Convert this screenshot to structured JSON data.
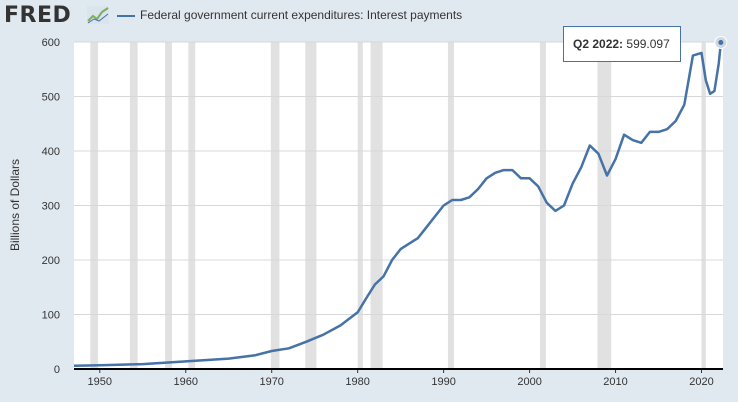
{
  "header": {
    "logo_text": "FRED",
    "legend_label": "Federal government current expenditures: Interest payments"
  },
  "tooltip": {
    "label": "Q2 2022:",
    "value": "599.097"
  },
  "colors": {
    "series": "#4572a7",
    "background": "#e1e9f0",
    "plot_background": "#ffffff",
    "recession": "#e1e1e1"
  },
  "chart_data": {
    "type": "line",
    "title": "",
    "xlabel": "",
    "ylabel": "Billions of Dollars",
    "xlim": [
      1947,
      2022.5
    ],
    "ylim": [
      0,
      600
    ],
    "x_ticks": [
      1950,
      1960,
      1970,
      1980,
      1990,
      2000,
      2010,
      2020
    ],
    "y_ticks": [
      0,
      100,
      200,
      300,
      400,
      500,
      600
    ],
    "grid": true,
    "legend": "top-left",
    "recessions": [
      [
        1948.9,
        1949.8
      ],
      [
        1953.5,
        1954.4
      ],
      [
        1957.6,
        1958.4
      ],
      [
        1960.3,
        1961.1
      ],
      [
        1969.9,
        1970.9
      ],
      [
        1973.9,
        1975.2
      ],
      [
        1980.0,
        1980.6
      ],
      [
        1981.5,
        1982.9
      ],
      [
        1990.5,
        1991.2
      ],
      [
        2001.2,
        2001.9
      ],
      [
        2007.9,
        2009.5
      ],
      [
        2020.0,
        2020.5
      ]
    ],
    "series": [
      {
        "x": [
          1947,
          1950,
          1955,
          1960,
          1965,
          1968,
          1970,
          1972,
          1974,
          1976,
          1978,
          1980,
          1981,
          1982,
          1983,
          1984,
          1985,
          1986,
          1987,
          1988,
          1989,
          1990,
          1991,
          1992,
          1993,
          1994,
          1995,
          1996,
          1997,
          1998,
          1999,
          2000,
          2001,
          2002,
          2003,
          2004,
          2005,
          2006,
          2007,
          2008,
          2009,
          2010,
          2011,
          2012,
          2013,
          2014,
          2015,
          2016,
          2017,
          2018,
          2019,
          2020,
          2020.5,
          2021,
          2021.5,
          2022,
          2022.25
        ],
        "values": [
          6,
          7,
          9,
          14,
          19,
          25,
          33,
          38,
          50,
          63,
          80,
          104,
          130,
          155,
          170,
          200,
          220,
          230,
          240,
          260,
          280,
          300,
          310,
          310,
          315,
          330,
          350,
          360,
          365,
          365,
          350,
          350,
          335,
          305,
          290,
          300,
          340,
          370,
          410,
          395,
          355,
          385,
          430,
          420,
          415,
          435,
          435,
          440,
          455,
          485,
          575,
          580,
          530,
          505,
          510,
          560,
          599.097
        ]
      }
    ]
  }
}
